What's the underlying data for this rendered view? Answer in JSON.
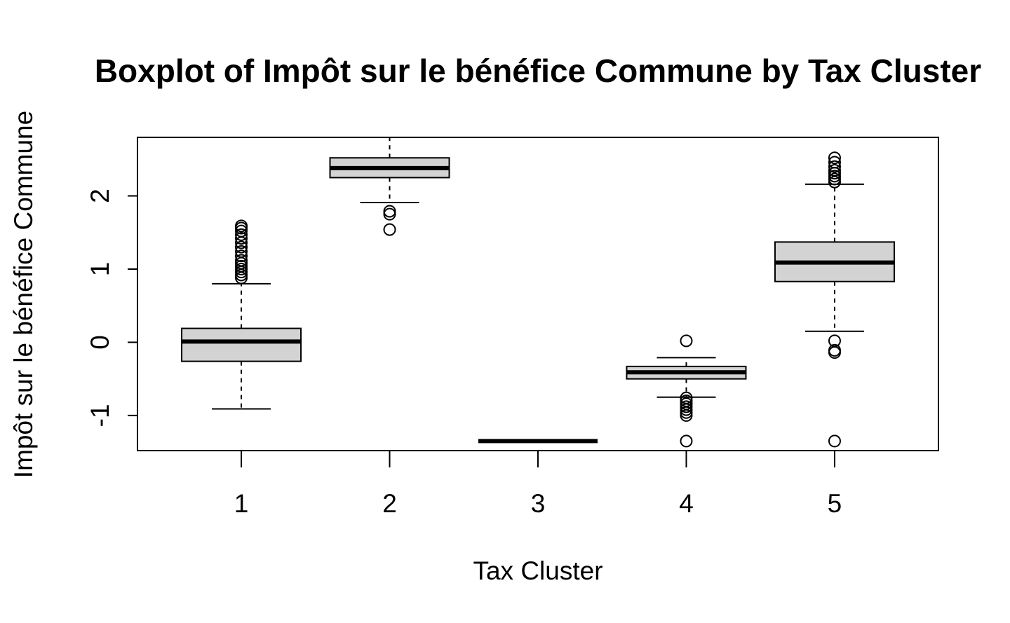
{
  "chart_data": {
    "type": "boxplot",
    "title": "Boxplot of Impôt sur le bénéfice Commune by Tax Cluster",
    "xlabel": "Tax Cluster",
    "ylabel": "Impôt sur le bénéfice Commune",
    "categories": [
      "1",
      "2",
      "3",
      "4",
      "5"
    ],
    "y_ticks": [
      -1,
      0,
      1,
      2
    ],
    "y_tick_labels": [
      "-1",
      "0",
      "1",
      "2"
    ],
    "ylim": [
      -1.48,
      2.8
    ],
    "grid": false,
    "box_fill": "#d3d3d3",
    "boxes": [
      {
        "category": "1",
        "whisker_low": -0.91,
        "q1": -0.26,
        "median": 0.01,
        "q3": 0.19,
        "whisker_high": 0.8,
        "outliers": [
          0.88,
          0.92,
          0.96,
          1.0,
          1.04,
          1.08,
          1.12,
          1.18,
          1.24,
          1.3,
          1.36,
          1.42,
          1.47,
          1.52,
          1.56,
          1.59
        ]
      },
      {
        "category": "2",
        "whisker_low": 1.91,
        "q1": 2.25,
        "median": 2.38,
        "q3": 2.52,
        "whisker_high": 2.8,
        "outliers": [
          1.54,
          1.75,
          1.79
        ]
      },
      {
        "category": "3",
        "whisker_low": -1.35,
        "q1": -1.35,
        "median": -1.35,
        "q3": -1.35,
        "whisker_high": -1.35,
        "outliers": []
      },
      {
        "category": "4",
        "whisker_low": -0.75,
        "q1": -0.5,
        "median": -0.41,
        "q3": -0.33,
        "whisker_high": -0.21,
        "outliers": [
          0.02,
          -0.76,
          -0.8,
          -0.84,
          -0.88,
          -0.92,
          -0.96,
          -1.0,
          -1.35
        ]
      },
      {
        "category": "5",
        "whisker_low": 0.15,
        "q1": 0.83,
        "median": 1.09,
        "q3": 1.37,
        "whisker_high": 2.16,
        "outliers": [
          2.19,
          2.23,
          2.27,
          2.31,
          2.35,
          2.4,
          2.46,
          2.52,
          0.02,
          -0.11,
          -0.14,
          -1.35
        ]
      }
    ]
  }
}
